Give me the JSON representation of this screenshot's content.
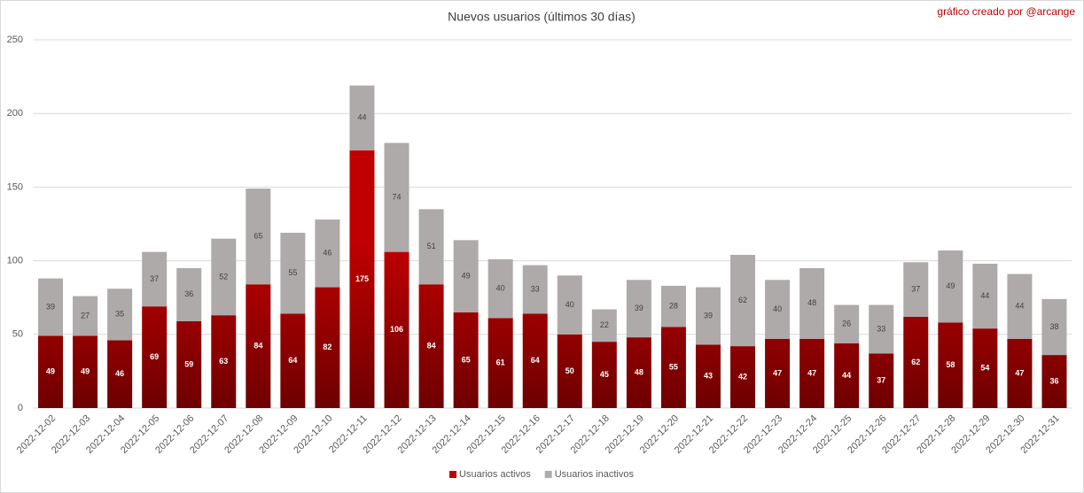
{
  "chart_data": {
    "type": "stacked_bar",
    "title": "Nuevos usuarios (últimos 30 días)",
    "annotation": "gráfico creado por @arcange",
    "categories": [
      "2022-12-02",
      "2022-12-03",
      "2022-12-04",
      "2022-12-05",
      "2022-12-06",
      "2022-12-07",
      "2022-12-08",
      "2022-12-09",
      "2022-12-10",
      "2022-12-11",
      "2022-12-12",
      "2022-12-13",
      "2022-12-14",
      "2022-12-15",
      "2022-12-16",
      "2022-12-17",
      "2022-12-18",
      "2022-12-19",
      "2022-12-20",
      "2022-12-21",
      "2022-12-22",
      "2022-12-23",
      "2022-12-24",
      "2022-12-25",
      "2022-12-26",
      "2022-12-27",
      "2022-12-28",
      "2022-12-29",
      "2022-12-30",
      "2022-12-31"
    ],
    "series": [
      {
        "name": "Usuarios activos",
        "color": "#c00000",
        "values": [
          49,
          49,
          46,
          69,
          59,
          63,
          84,
          64,
          82,
          175,
          106,
          84,
          65,
          61,
          64,
          50,
          45,
          48,
          55,
          43,
          42,
          47,
          47,
          44,
          37,
          62,
          58,
          54,
          47,
          36
        ]
      },
      {
        "name": "Usuarios inactivos",
        "color": "#aeaaaa",
        "values": [
          39,
          27,
          35,
          37,
          36,
          52,
          65,
          55,
          46,
          44,
          74,
          51,
          49,
          40,
          33,
          40,
          22,
          39,
          28,
          39,
          62,
          40,
          48,
          26,
          33,
          37,
          49,
          44,
          44,
          38
        ]
      }
    ],
    "ylim": [
      0,
      250
    ],
    "yticks": [
      0,
      50,
      100,
      150,
      200,
      250
    ],
    "grid": true,
    "legend": "bottom"
  }
}
